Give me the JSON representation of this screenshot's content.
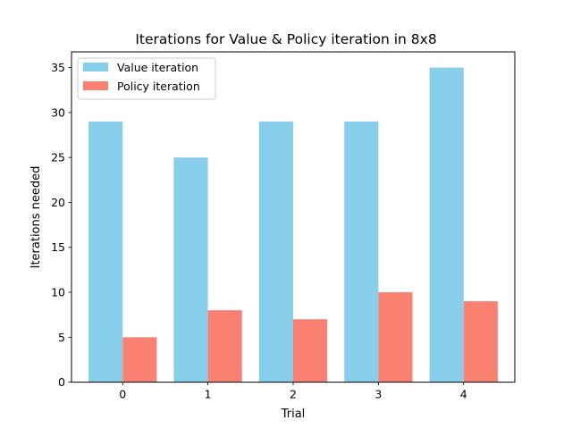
{
  "chart_data": {
    "type": "bar",
    "title": "Iterations for Value & Policy iteration in 8x8",
    "xlabel": "Trial",
    "ylabel": "Iterations needed",
    "categories": [
      "0",
      "1",
      "2",
      "3",
      "4"
    ],
    "series": [
      {
        "name": "Value iteration",
        "values": [
          29,
          25,
          29,
          29,
          35
        ],
        "color": "#87CEEB"
      },
      {
        "name": "Policy iteration",
        "values": [
          5,
          8,
          7,
          10,
          9
        ],
        "color": "#FA8072"
      }
    ],
    "yticks": [
      0,
      5,
      10,
      15,
      20,
      25,
      30,
      35
    ],
    "ylim": [
      0,
      36.75
    ],
    "xlim": [
      -0.6,
      4.6
    ],
    "grid": false,
    "legend_position": "top-left"
  }
}
